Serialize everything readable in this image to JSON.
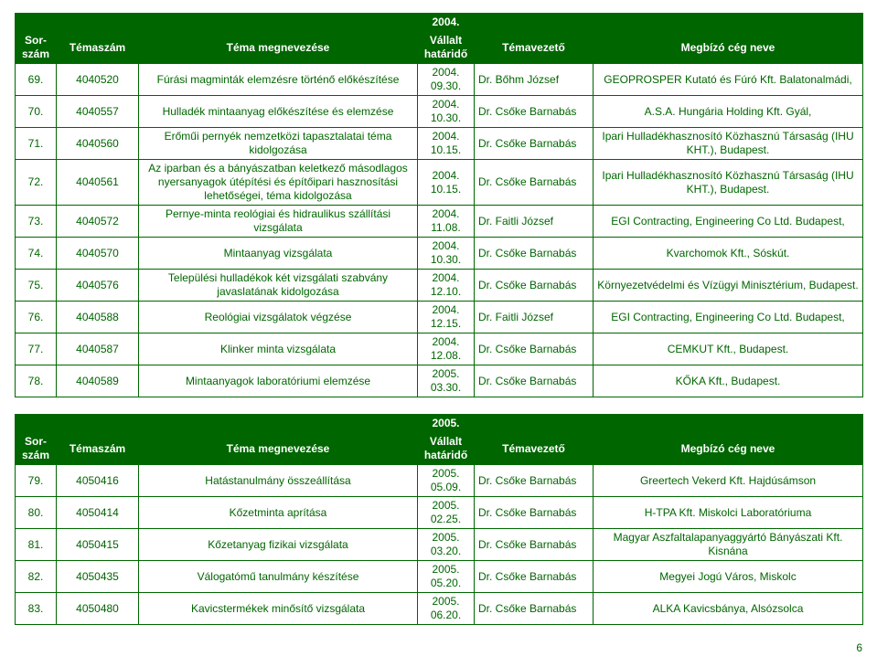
{
  "page_number": "6",
  "colors": {
    "text": "#006600",
    "header_bg": "#006600",
    "header_fg": "#ffffff",
    "border": "#006600",
    "page_bg": "#ffffff"
  },
  "table1": {
    "header_year": "2004.",
    "headers": {
      "sorszam": "Sor-szám",
      "temaszam": "Témaszám",
      "megnevezes": "Téma megnevezése",
      "hatarido": "Vállalt határidő",
      "temavez": "Témavezető",
      "ceg": "Megbízó cég neve"
    },
    "rows": [
      {
        "sorszam": "69.",
        "temaszam": "4040520",
        "megnev": "Fúrási magminták elemzésre történő előkészítése",
        "hatarido": "2004. 09.30.",
        "vez": "Dr. Bőhm József",
        "ceg": "GEOPROSPER Kutató és Fúró Kft. Balatonalmádi,"
      },
      {
        "sorszam": "70.",
        "temaszam": "4040557",
        "megnev": "Hulladék mintaanyag előkészítése és elemzése",
        "hatarido": "2004. 10.30.",
        "vez": "Dr. Csőke Barnabás",
        "ceg": "A.S.A. Hungária Holding Kft. Gyál,"
      },
      {
        "sorszam": "71.",
        "temaszam": "4040560",
        "megnev": "Erőműi pernyék nemzetközi tapasztalatai téma kidolgozása",
        "hatarido": "2004. 10.15.",
        "vez": "Dr. Csőke Barnabás",
        "ceg": "Ipari Hulladékhasznosító Közhasznú Társaság (IHU KHT.), Budapest."
      },
      {
        "sorszam": "72.",
        "temaszam": "4040561",
        "megnev": "Az iparban és a bányászatban keletkező másodlagos nyersanyagok útépítési és építőipari hasznosítási lehetőségei, téma kidolgozása",
        "hatarido": "2004. 10.15.",
        "vez": "Dr. Csőke Barnabás",
        "ceg": "Ipari Hulladékhasznosító Közhasznú Társaság (IHU KHT.), Budapest."
      },
      {
        "sorszam": "73.",
        "temaszam": "4040572",
        "megnev": "Pernye-minta reológiai és hidraulikus szállítási vizsgálata",
        "hatarido": "2004. 11.08.",
        "vez": "Dr. Faitli József",
        "ceg": "EGI Contracting, Engineering Co Ltd. Budapest,"
      },
      {
        "sorszam": "74.",
        "temaszam": "4040570",
        "megnev": "Mintaanyag vizsgálata",
        "hatarido": "2004. 10.30.",
        "vez": "Dr. Csőke Barnabás",
        "ceg": "Kvarchomok Kft., Sóskút."
      },
      {
        "sorszam": "75.",
        "temaszam": "4040576",
        "megnev": "Települési hulladékok két vizsgálati szabvány javaslatának kidolgozása",
        "hatarido": "2004. 12.10.",
        "vez": "Dr. Csőke Barnabás",
        "ceg": "Környezetvédelmi és Vízügyi Minisztérium, Budapest."
      },
      {
        "sorszam": "76.",
        "temaszam": "4040588",
        "megnev": "Reológiai vizsgálatok végzése",
        "hatarido": "2004. 12.15.",
        "vez": "Dr. Faitli József",
        "ceg": "EGI Contracting, Engineering Co Ltd. Budapest,"
      },
      {
        "sorszam": "77.",
        "temaszam": "4040587",
        "megnev": "Klinker minta vizsgálata",
        "hatarido": "2004. 12.08.",
        "vez": "Dr. Csőke Barnabás",
        "ceg": "CEMKUT Kft., Budapest."
      },
      {
        "sorszam": "78.",
        "temaszam": "4040589",
        "megnev": "Mintaanyagok laboratóriumi elemzése",
        "hatarido": "2005. 03.30.",
        "vez": "Dr. Csőke Barnabás",
        "ceg": "KŐKA Kft., Budapest."
      }
    ]
  },
  "table2": {
    "header_year": "2005.",
    "headers": {
      "sorszam": "Sor-szám",
      "temaszam": "Témaszám",
      "megnevezes": "Téma megnevezése",
      "hatarido": "Vállalt határidő",
      "temavez": "Témavezető",
      "ceg": "Megbízó cég neve"
    },
    "rows": [
      {
        "sorszam": "79.",
        "temaszam": "4050416",
        "megnev": "Hatástanulmány összeállítása",
        "hatarido": "2005. 05.09.",
        "vez": "Dr. Csőke Barnabás",
        "ceg": "Greertech Vekerd Kft. Hajdúsámson"
      },
      {
        "sorszam": "80.",
        "temaszam": "4050414",
        "megnev": "Kőzetminta aprítása",
        "hatarido": "2005. 02.25.",
        "vez": "Dr. Csőke Barnabás",
        "ceg": "H-TPA Kft. Miskolci Laboratóriuma"
      },
      {
        "sorszam": "81.",
        "temaszam": "4050415",
        "megnev": "Kőzetanyag fizikai vizsgálata",
        "hatarido": "2005. 03.20.",
        "vez": "Dr. Csőke Barnabás",
        "ceg": "Magyar Aszfaltalapanyaggyártó Bányászati Kft. Kisnána"
      },
      {
        "sorszam": "82.",
        "temaszam": "4050435",
        "megnev": "Válogatómű tanulmány készítése",
        "hatarido": "2005. 05.20.",
        "vez": "Dr. Csőke Barnabás",
        "ceg": "Megyei Jogú Város, Miskolc"
      },
      {
        "sorszam": "83.",
        "temaszam": "4050480",
        "megnev": "Kavicstermékek minősítő vizsgálata",
        "hatarido": "2005. 06.20.",
        "vez": "Dr. Csőke Barnabás",
        "ceg": "ALKA Kavicsbánya, Alsózsolca"
      }
    ]
  }
}
